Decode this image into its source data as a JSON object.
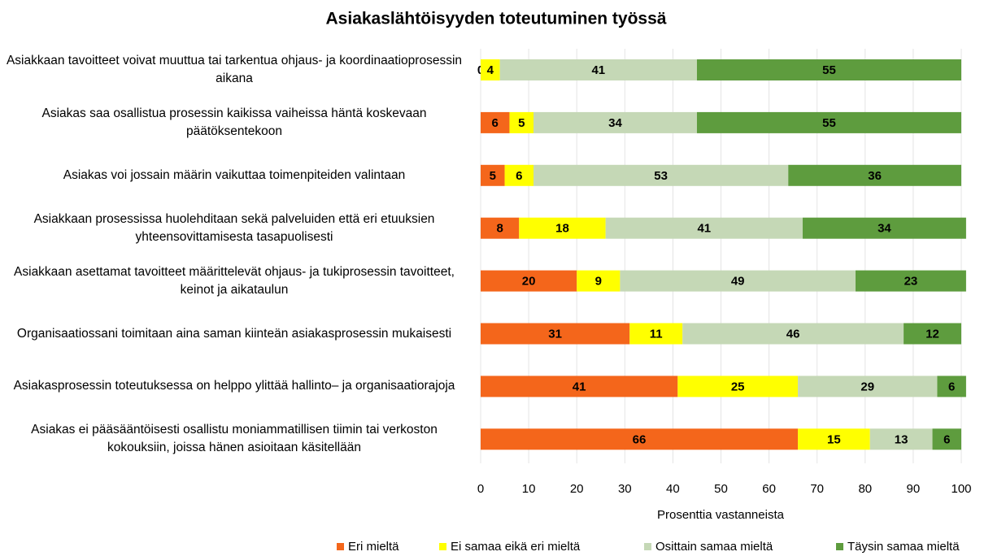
{
  "chart_data": {
    "type": "stacked_bar_horizontal",
    "title": "Asiakaslähtöisyyden toteutuminen työssä",
    "x_label": "Prosenttia vastanneista",
    "categories": [
      "Asiakkaan tavoitteet voivat muuttua tai tarkentua ohjaus- ja koordinaatioprosessin aikana",
      "Asiakas saa osallistua prosessin kaikissa vaiheissa häntä koskevaan päätöksentekoon",
      "Asiakas voi jossain määrin vaikuttaa toimenpiteiden valintaan",
      "Asiakkaan prosessissa huolehditaan sekä palveluiden että eri etuuksien yhteensovittamisesta tasapuolisesti",
      "Asiakkaan asettamat tavoitteet määrittelevät ohjaus- ja tukiprosessin tavoitteet, keinot ja aikataulun",
      "Organisaatiossani toimitaan aina saman kiinteän asiakasprosessin mukaisesti",
      "Asiakasprosessin toteutuksessa on helppo ylittää hallinto– ja organisaatiorajoja",
      "Asiakas ei pääsääntöisesti osallistu moniammatillisen tiimin tai verkoston kokouksiin, joissa hänen asioitaan käsitellään"
    ],
    "series": [
      {
        "name": "Eri mieltä",
        "color": "#f4661b",
        "values": [
          0,
          6,
          5,
          8,
          20,
          31,
          41,
          66
        ]
      },
      {
        "name": "Ei samaa eikä eri mieltä",
        "color": "#ffff00",
        "values": [
          4,
          5,
          6,
          18,
          9,
          11,
          25,
          15
        ]
      },
      {
        "name": "Osittain samaa mieltä",
        "color": "#c5d8b6",
        "values": [
          41,
          34,
          53,
          41,
          49,
          46,
          29,
          13
        ]
      },
      {
        "name": "Täysin samaa mieltä",
        "color": "#5e9c3e",
        "values": [
          55,
          55,
          36,
          34,
          23,
          12,
          6,
          6
        ]
      }
    ],
    "xlim": [
      0,
      100
    ],
    "xticks": [
      0,
      10,
      20,
      30,
      40,
      50,
      60,
      70,
      80,
      90,
      100
    ],
    "grid": true,
    "legend": "bottom"
  }
}
